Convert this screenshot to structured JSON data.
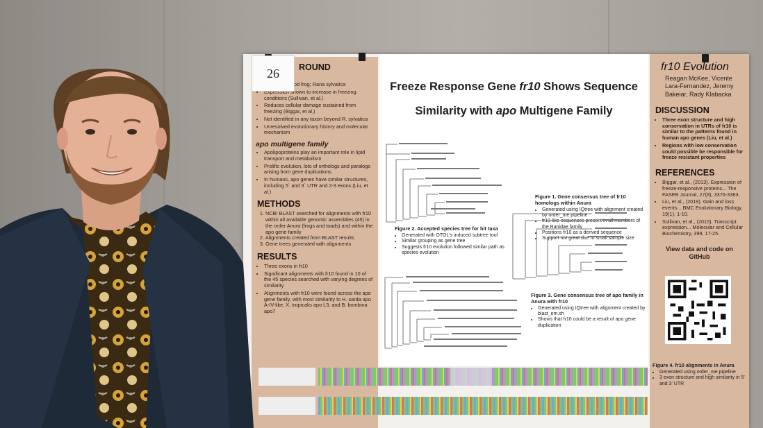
{
  "poster": {
    "number": "26",
    "title_line1_pre": "Freeze Response Gene ",
    "title_line1_gene": "fr10",
    "title_line1_post": " Shows Sequence",
    "title_line2_pre": "Similarity with ",
    "title_line2_gene": "apo",
    "title_line2_post": " Multigene Family",
    "left": {
      "bg_heading": "ROUND",
      "bg_items": [
        "fied in the wood frog; Rana sylvatica",
        "Expression shown to increase in freezing conditions (Sullivan, et al.)",
        "Reduces cellular damage sustained from freezing (Biggar, et al.)",
        "Not identified in any taxon beyond R. sylvatica",
        "Unresolved evolutionary history and molecular mechanism"
      ],
      "apo_heading": "apo multigene family",
      "apo_items": [
        "Apolipoproteins play an important role in lipid transport and metabolism",
        "Prolific evolution, lots of orthologs and paralogs arising from gene duplications",
        "In humans, apo genes have similar structures, including 5` and 3` UTR and 2-3 exons (Liu, et al.)"
      ],
      "methods_heading": "METHODS",
      "methods_items": [
        "NCBI BLAST searched for alignments with fr10 within all available genomic assemblies (45) in the order Anura (frogs and toads) and within the apo gene family",
        "Alignments created from BLAST results",
        "Gene trees generated with alignments"
      ],
      "results_heading": "RESULTS",
      "results_items": [
        "Three exons in fr10",
        "Significant alignments with fr10 found in 10 of the 45 species searched with varying degrees of similarity",
        "Alignments with fr10 were found across the apo gene family, with most similarity to H. sarda apo A-IV-like, X. tropicalis apo L3, and B. bombina apo7"
      ]
    },
    "figures": {
      "fig1_caption": "Figure 1. Gene consensus tree of fr10 homologs within Anura",
      "fig1_items": [
        "Generated using IQtree with alignment created by order_me pipeline",
        "fr10-like sequences present in all members of the Ranidae family",
        "Positions fr10 as a derived sequence",
        "Support not great due to small sample size"
      ],
      "fig2_caption": "Figure 2. Accepted species tree for hit taxa",
      "fig2_items": [
        "Generated with OTOL's induced subtree tool",
        "Similar grouping as gene tree",
        "Suggests fr10 evolution followed similar path as species evolution"
      ],
      "fig3_caption": "Figure 3. Gene consensus tree of apo family in Anura with fr10",
      "fig3_items": [
        "Generated using IQtree with alignment created by blast_em.sh",
        "Shows that fr10 could be a result of apo gene duplication"
      ],
      "fig4_caption": "Figure 4. fr10 alignments in Anura",
      "fig4_items": [
        "Generated using order_me pipeline",
        "3 exon structure and high similarity in 5' and 3' UTR"
      ]
    },
    "right": {
      "heading": "fr10 Evolution",
      "authors": "Reagan McKee, Vicente Lara-Fernandez, Jeremy Bakeiar, Rady Klabacka",
      "discussion_heading": "DISCUSSION",
      "discussion_items": [
        "Three exon structure and high conservation in UTRs of fr10 is similar to the patterns found in human apo genes (Liu, et al.)",
        "Regions with low conservation could possible be responsible for freeze resistant properties"
      ],
      "references_heading": "REFERENCES",
      "references_items": [
        "Biggar, et al., (2013). Expression of freeze-responsive proteins... The FASEB Journal, 27(8), 3376-3383.",
        "Liu, et al., (2019). Gain and loss events... BMC Evolutionary Biology, 19(1), 1-10.",
        "Sullivan, et al., (2015). Transcript expression... Molecular and Cellular Biochemistry, 399, 17-25."
      ],
      "github_label": "View data and code on GitHub"
    }
  },
  "colors": {
    "poster_accent": "#d9b8a0",
    "wall": "#a8a39d",
    "shirt_base": "#3a2a14",
    "jacket": "#1f2a38"
  }
}
